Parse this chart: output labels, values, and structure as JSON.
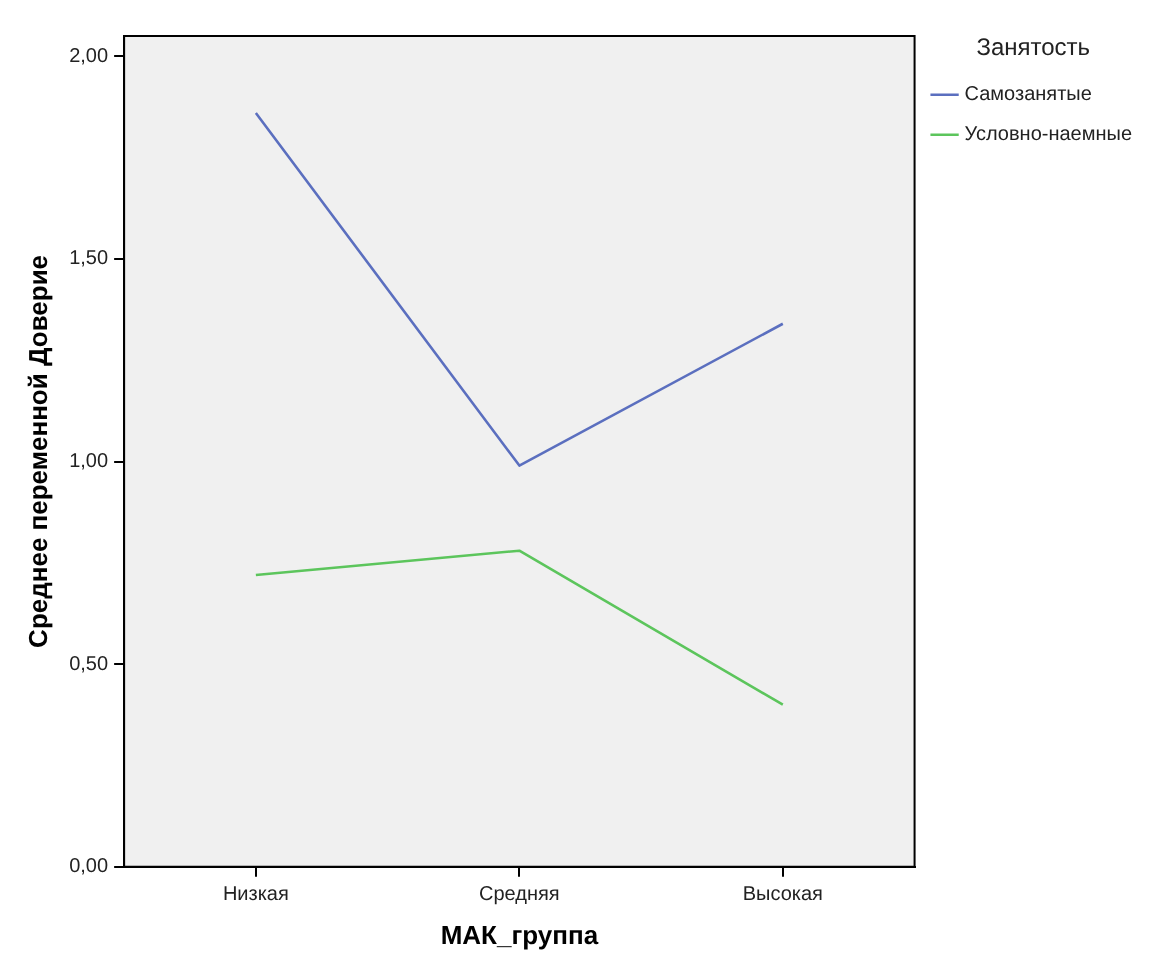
{
  "chart_data": {
    "type": "line",
    "xlabel": "МАК_группа",
    "ylabel": "Среднее переменной Доверие",
    "legend_title": "Занятость",
    "categories": [
      "Низкая",
      "Средняя",
      "Высокая"
    ],
    "series": [
      {
        "name": "Самозанятые",
        "color": "#5b6fbf",
        "values": [
          1.86,
          0.99,
          1.34
        ]
      },
      {
        "name": "Условно-наемные",
        "color": "#5cc55c",
        "values": [
          0.72,
          0.78,
          0.4
        ]
      }
    ],
    "ylim": [
      0,
      2.05
    ],
    "yticks": [
      {
        "value": 0,
        "label": "0,00"
      },
      {
        "value": 0.5,
        "label": "0,50"
      },
      {
        "value": 1,
        "label": "1,00"
      },
      {
        "value": 1.5,
        "label": "1,50"
      },
      {
        "value": 2,
        "label": "2,00"
      }
    ],
    "grid": false,
    "legend": "top right",
    "marker": "none",
    "line_style": "solid"
  }
}
